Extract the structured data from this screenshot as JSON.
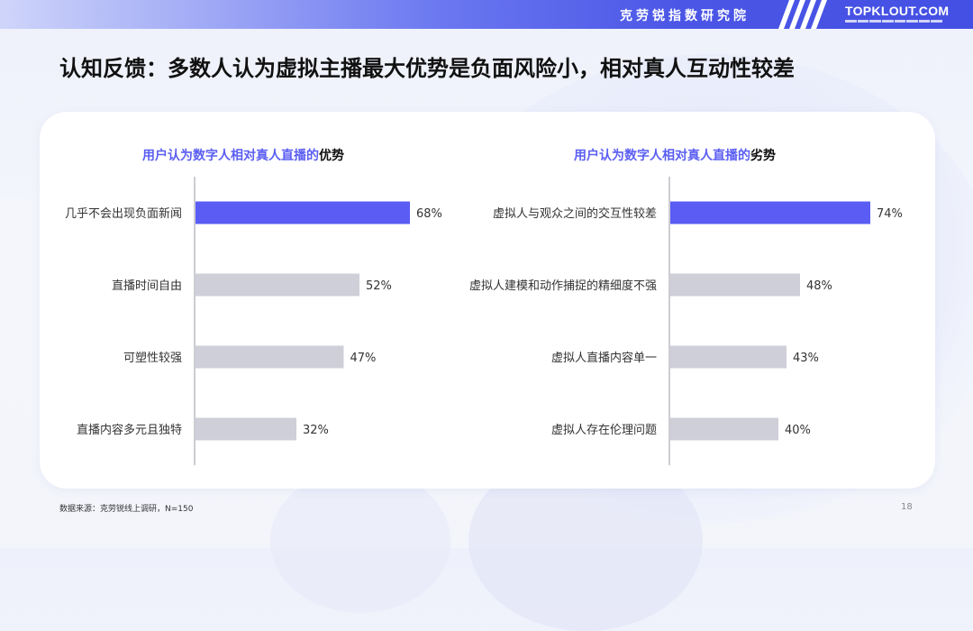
{
  "header": {
    "brand_cn": "克劳锐指数研究院",
    "logo": "TOPKLOUT.COM"
  },
  "page_title": "认知反馈：多数人认为虚拟主播最大优势是负面风险小，相对真人互动性较差",
  "colors": {
    "highlight": "#5a5cf4",
    "bar": "#cfcfd9",
    "axis": "#9a9aa6"
  },
  "chart_data": [
    {
      "type": "bar",
      "orientation": "horizontal",
      "title": "用户认为数字人相对真人直播的优势",
      "title_prefix": "用户认为数字人相对真人直播的",
      "title_suffix": "优势",
      "categories": [
        "几乎不会出现负面新闻",
        "直播时间自由",
        "可塑性较强",
        "直播内容多元且独特"
      ],
      "values": [
        68,
        52,
        47,
        32
      ],
      "labels": [
        "68%",
        "52%",
        "47%",
        "32%"
      ],
      "unit": "%",
      "highlight_index": 0,
      "xlim": [
        0,
        100
      ]
    },
    {
      "type": "bar",
      "orientation": "horizontal",
      "title": "用户认为数字人相对真人直播的劣势",
      "title_prefix": "用户认为数字人相对真人直播的",
      "title_suffix": "劣势",
      "categories": [
        "虚拟人与观众之间的交互性较差",
        "虚拟人建模和动作捕捉的精细度不强",
        "虚拟人直播内容单一",
        "虚拟人存在伦理问题"
      ],
      "values": [
        74,
        48,
        43,
        40
      ],
      "labels": [
        "74%",
        "48%",
        "43%",
        "40%"
      ],
      "unit": "%",
      "highlight_index": 0,
      "xlim": [
        0,
        100
      ]
    }
  ],
  "footer": {
    "source": "数据来源：克劳锐线上调研，N=150",
    "page_number": "18"
  }
}
